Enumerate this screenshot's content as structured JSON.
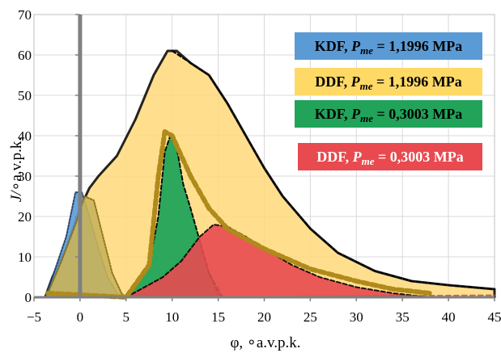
{
  "chart_data": {
    "type": "area",
    "xlabel": "φ, ∘a.v.p.k.",
    "ylabel_prefix": "J/",
    "ylabel_unit": "∘a.v.p.k.",
    "xlim": [
      -5,
      45
    ],
    "ylim": [
      0,
      70
    ],
    "x_ticks": [
      "−5",
      "0",
      "5",
      "10",
      "15",
      "20",
      "25",
      "30",
      "35",
      "40",
      "45"
    ],
    "y_ticks": [
      "0",
      "10",
      "20",
      "30",
      "40",
      "50",
      "60",
      "70"
    ],
    "grid": true,
    "legend": [
      {
        "parts": [
          "KDF, ",
          "P",
          "me",
          " = 1,1996 MPa"
        ],
        "fill": "#5b9bd5",
        "text_color": "#000000"
      },
      {
        "parts": [
          "DDF, ",
          "P",
          "me",
          " = 1,1996 MPa"
        ],
        "fill": "#ffd966",
        "text_color": "#000000"
      },
      {
        "parts": [
          "KDF, ",
          "P",
          "me",
          " = 0,3003 MPa"
        ],
        "fill": "#21a35a",
        "text_color": "#000000"
      },
      {
        "parts": [
          "DDF, ",
          "P",
          "me",
          " = 0,3003 MPa"
        ],
        "fill": "#e84a4f",
        "text_color": "#ffffff"
      }
    ],
    "series": [
      {
        "fill": "#ffd97a",
        "stroke": "#000000",
        "dash": "none",
        "stroke_width": 3,
        "opacity": 0.85,
        "points": [
          [
            -3.8,
            0
          ],
          [
            -3,
            5
          ],
          [
            -1.5,
            12
          ],
          [
            0,
            22
          ],
          [
            1,
            27
          ],
          [
            2,
            30
          ],
          [
            4,
            35
          ],
          [
            6,
            44
          ],
          [
            8,
            55
          ],
          [
            9.5,
            61
          ],
          [
            10.5,
            61
          ],
          [
            12,
            58
          ],
          [
            14,
            55
          ],
          [
            16,
            48
          ],
          [
            18,
            40
          ],
          [
            20,
            32
          ],
          [
            22,
            25
          ],
          [
            25,
            17
          ],
          [
            28,
            11
          ],
          [
            32,
            6.5
          ],
          [
            36,
            4
          ],
          [
            40,
            3
          ],
          [
            45,
            2
          ],
          [
            45,
            0
          ]
        ]
      },
      {
        "fill": "#5b9bd5",
        "stroke": "#1f3864",
        "dash": "2,2",
        "stroke_width": 2,
        "opacity": 0.9,
        "points": [
          [
            -3.8,
            0
          ],
          [
            -3,
            5
          ],
          [
            -1.5,
            15
          ],
          [
            -0.5,
            26
          ],
          [
            0.2,
            26
          ],
          [
            1,
            20
          ],
          [
            2,
            12
          ],
          [
            3,
            5
          ],
          [
            4,
            1
          ],
          [
            4.5,
            0
          ]
        ]
      },
      {
        "fill": "#c9b45a",
        "stroke": "#8a6d1a",
        "dash": "2,2",
        "stroke_width": 2,
        "opacity": 0.9,
        "points": [
          [
            -3.5,
            1
          ],
          [
            -2,
            9
          ],
          [
            -0.5,
            18
          ],
          [
            0.5,
            25
          ],
          [
            1.5,
            24
          ],
          [
            2.5,
            15
          ],
          [
            3.5,
            6
          ],
          [
            4.5,
            1
          ],
          [
            5,
            0
          ]
        ]
      },
      {
        "fill": "#21a35a",
        "stroke": "#000000",
        "dash": "5,3",
        "stroke_width": 2,
        "opacity": 0.95,
        "points": [
          [
            5,
            0
          ],
          [
            6,
            3
          ],
          [
            7.5,
            8
          ],
          [
            8.5,
            20
          ],
          [
            9.2,
            36
          ],
          [
            9.8,
            40
          ],
          [
            10.5,
            37
          ],
          [
            11.2,
            28
          ],
          [
            12,
            22
          ],
          [
            13,
            14
          ],
          [
            14,
            6
          ],
          [
            15,
            1
          ],
          [
            15.5,
            0
          ]
        ]
      },
      {
        "fill": "#e84a4f",
        "stroke": "#000000",
        "dash": "5,3",
        "stroke_width": 2,
        "opacity": 0.9,
        "points": [
          [
            5,
            0
          ],
          [
            7,
            2.5
          ],
          [
            9,
            5
          ],
          [
            11,
            9
          ],
          [
            13,
            15
          ],
          [
            14.5,
            18
          ],
          [
            16,
            17.5
          ],
          [
            18,
            15
          ],
          [
            20,
            12
          ],
          [
            23,
            8
          ],
          [
            26,
            5
          ],
          [
            30,
            2.5
          ],
          [
            34,
            1
          ],
          [
            38,
            0
          ]
        ]
      },
      {
        "fill": "none",
        "stroke": "#b08a1a",
        "dash": "7,4",
        "stroke_width": 6,
        "opacity": 1,
        "points": [
          [
            -3.5,
            1
          ],
          [
            5,
            0
          ],
          [
            7.5,
            8
          ],
          [
            8.5,
            30
          ],
          [
            9.2,
            41
          ],
          [
            10,
            40
          ],
          [
            12,
            30
          ],
          [
            14,
            22
          ],
          [
            16,
            17
          ],
          [
            20,
            12
          ],
          [
            25,
            7
          ],
          [
            30,
            4
          ],
          [
            34,
            2
          ],
          [
            38,
            1
          ]
        ]
      },
      {
        "fill": "none",
        "stroke": "#000000",
        "dash": "5,3",
        "stroke_width": 2,
        "opacity": 1,
        "points": [
          [
            10,
            61
          ],
          [
            12,
            58
          ],
          [
            14,
            55
          ],
          [
            16,
            48
          ],
          [
            18,
            40
          ],
          [
            20,
            32
          ],
          [
            22,
            25
          ],
          [
            25,
            17
          ],
          [
            28,
            11
          ],
          [
            32,
            6.5
          ],
          [
            36,
            4
          ],
          [
            40,
            3
          ],
          [
            45,
            2
          ]
        ]
      },
      {
        "fill": "none",
        "stroke": "#b05050",
        "dash": "6,4",
        "stroke_width": 2,
        "opacity": 0.8,
        "points": [
          [
            14,
            6
          ],
          [
            15.5,
            0
          ],
          [
            45,
            0.5
          ]
        ]
      }
    ]
  }
}
